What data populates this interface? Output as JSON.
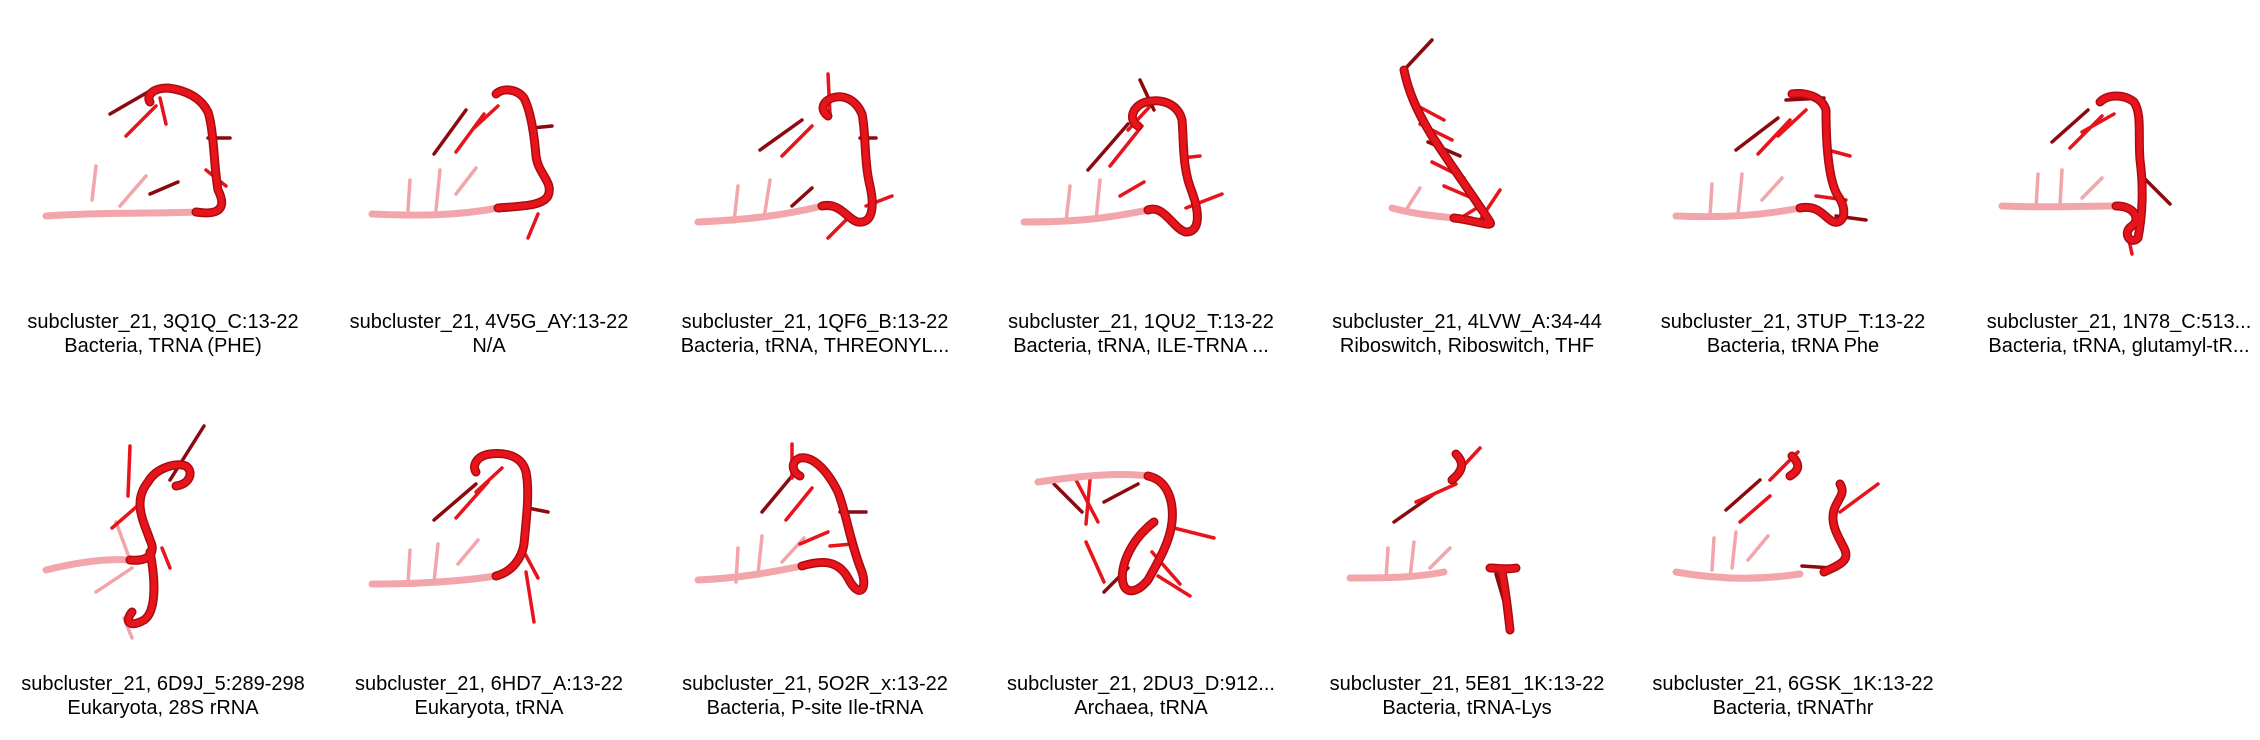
{
  "colors": {
    "background": "#ffffff",
    "backbone": "#e8141c",
    "backbone_dark": "#a80c10",
    "base_light": "#f2a5aa",
    "base_dark": "#8a0a0e"
  },
  "tiles": [
    {
      "title": "subcluster_21, 3Q1Q_C:13-22",
      "subtitle": "Bacteria, TRNA (PHE)",
      "shape": 0
    },
    {
      "title": "subcluster_21, 4V5G_AY:13-22",
      "subtitle": "N/A",
      "shape": 1
    },
    {
      "title": "subcluster_21, 1QF6_B:13-22",
      "subtitle": "Bacteria, tRNA, THREONYL...",
      "shape": 2
    },
    {
      "title": "subcluster_21, 1QU2_T:13-22",
      "subtitle": "Bacteria, tRNA, ILE-TRNA ...",
      "shape": 3
    },
    {
      "title": "subcluster_21, 4LVW_A:34-44",
      "subtitle": "Riboswitch, Riboswitch, THF",
      "shape": 4
    },
    {
      "title": "subcluster_21, 3TUP_T:13-22",
      "subtitle": "Bacteria, tRNA Phe",
      "shape": 5
    },
    {
      "title": "subcluster_21, 1N78_C:513...",
      "subtitle": "Bacteria, tRNA, glutamyl-tR...",
      "shape": 6
    },
    {
      "title": "subcluster_21, 6D9J_5:289-298",
      "subtitle": "Eukaryota, 28S rRNA",
      "shape": 7
    },
    {
      "title": "subcluster_21, 6HD7_A:13-22",
      "subtitle": "Eukaryota, tRNA",
      "shape": 8
    },
    {
      "title": "subcluster_21, 5O2R_x:13-22",
      "subtitle": "Bacteria, P-site Ile-tRNA",
      "shape": 9
    },
    {
      "title": "subcluster_21, 2DU3_D:912...",
      "subtitle": "Archaea, tRNA",
      "shape": 10
    },
    {
      "title": "subcluster_21, 5E81_1K:13-22",
      "subtitle": "Bacteria, tRNA-Lys",
      "shape": 11
    },
    {
      "title": "subcluster_21, 6GSK_1K:13-22",
      "subtitle": "Bacteria, tRNAThr",
      "shape": 12
    }
  ]
}
